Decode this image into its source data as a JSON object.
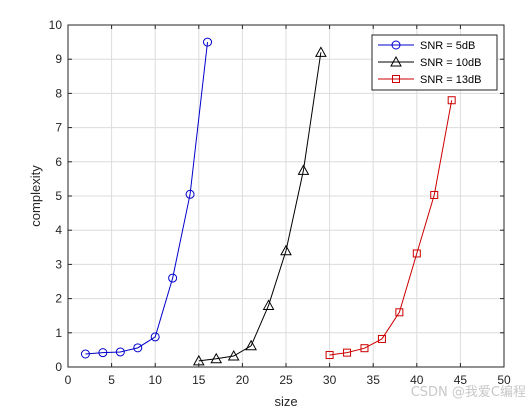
{
  "chart_data": {
    "type": "line",
    "xlabel": "size",
    "ylabel": "complexity",
    "xlim": [
      0,
      50
    ],
    "ylim": [
      0,
      10
    ],
    "xticks": [
      0,
      5,
      10,
      15,
      20,
      25,
      30,
      35,
      40,
      45,
      50
    ],
    "yticks": [
      0,
      1,
      2,
      3,
      4,
      5,
      6,
      7,
      8,
      9,
      10
    ],
    "grid": true,
    "legend_position": "top-right",
    "series": [
      {
        "name": "SNR = 5dB",
        "color": "#0000cc",
        "marker": "circle",
        "x": [
          2,
          4,
          6,
          8,
          10,
          12,
          14,
          16
        ],
        "y": [
          0.38,
          0.42,
          0.44,
          0.56,
          0.88,
          2.6,
          5.05,
          9.5
        ]
      },
      {
        "name": "SNR = 10dB",
        "color": "#000000",
        "marker": "triangle",
        "x": [
          15,
          17,
          19,
          21,
          23,
          25,
          27,
          29
        ],
        "y": [
          0.18,
          0.24,
          0.32,
          0.62,
          1.8,
          3.4,
          5.75,
          9.2
        ]
      },
      {
        "name": "SNR = 13dB",
        "color": "#cc0000",
        "marker": "square",
        "x": [
          30,
          32,
          34,
          36,
          38,
          40,
          42,
          44
        ],
        "y": [
          0.35,
          0.42,
          0.55,
          0.82,
          1.6,
          3.32,
          5.03,
          7.8
        ]
      }
    ]
  },
  "watermark": "CSDN @我爱C编程"
}
